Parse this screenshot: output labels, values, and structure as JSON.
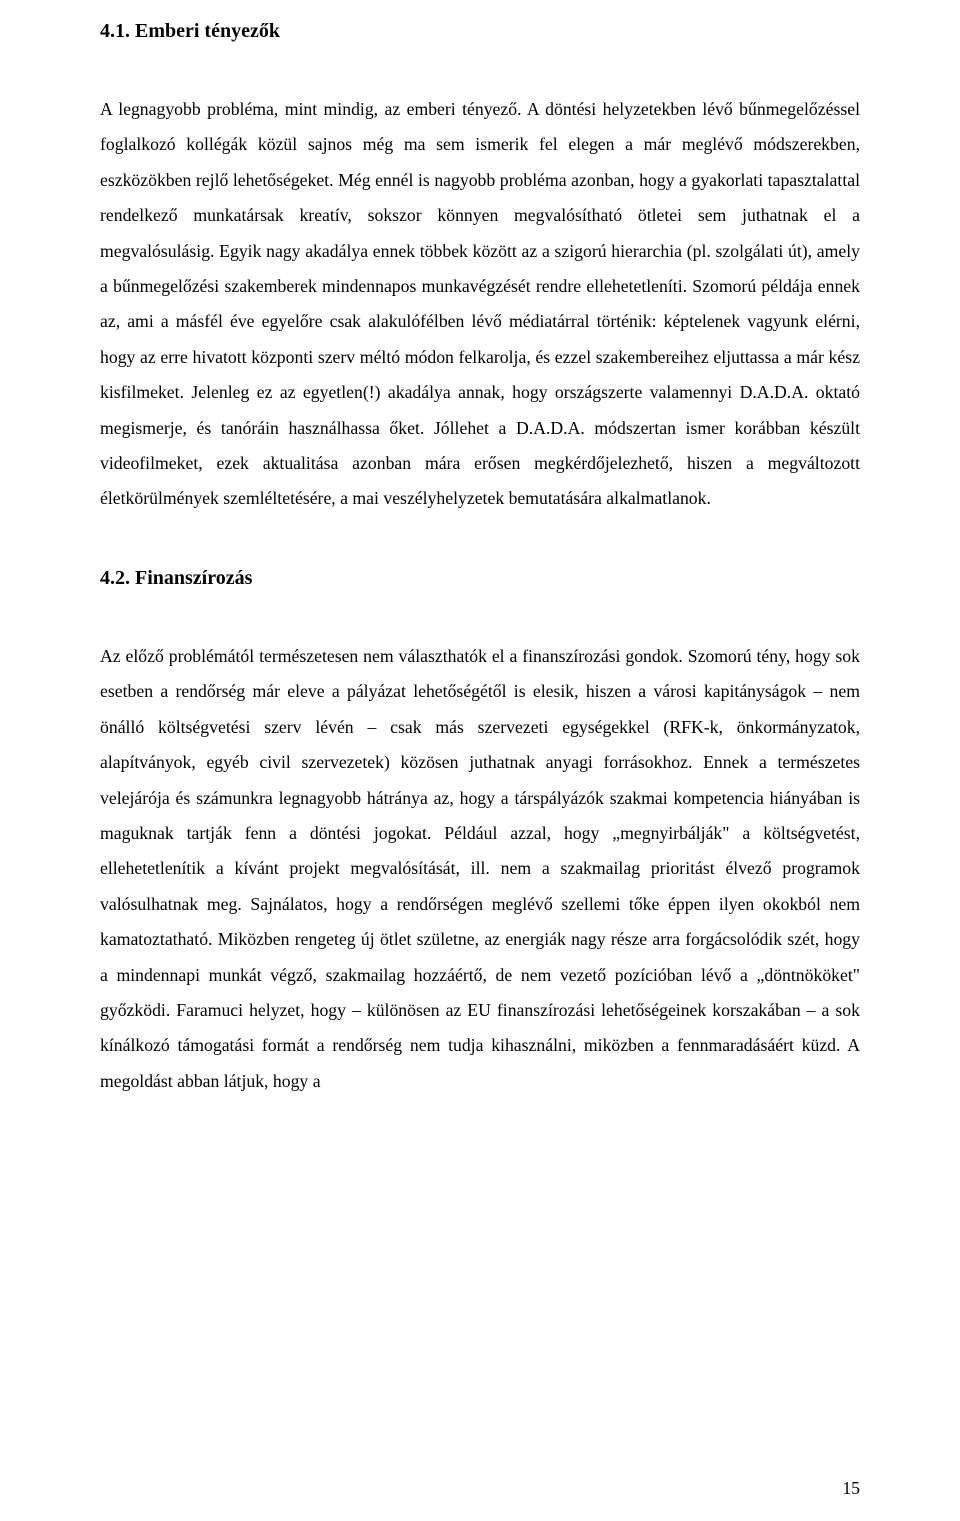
{
  "section1": {
    "heading": "4.1. Emberi tényezők",
    "body": "A legnagyobb probléma, mint mindig, az emberi tényező. A döntési helyzetekben lévő bűnmegelőzéssel foglalkozó kollégák közül sajnos még ma sem ismerik fel elegen a már meglévő módszerekben, eszközökben rejlő lehetőségeket. Még ennél is nagyobb probléma azonban, hogy a gyakorlati tapasztalattal rendelkező munkatársak kreatív, sokszor könnyen megvalósítható ötletei sem juthatnak el a megvalósulásig. Egyik nagy akadálya ennek többek között az a szigorú hierarchia (pl. szolgálati út), amely a bűnmegelőzési szakemberek mindennapos munkavégzését rendre ellehetetleníti. Szomorú példája ennek az, ami a másfél éve egyelőre csak alakulófélben lévő médiatárral történik: képtelenek vagyunk elérni, hogy az erre hivatott központi szerv méltó módon felkarolja, és ezzel szakembereihez eljuttassa a már kész kisfilmeket. Jelenleg ez az egyetlen(!) akadálya annak, hogy országszerte valamennyi D.A.D.A. oktató megismerje, és tanóráin használhassa őket. Jóllehet a D.A.D.A. módszertan ismer korábban készült videofilmeket, ezek aktualitása azonban mára erősen megkérdőjelezhető, hiszen a megváltozott életkörülmények szemléltetésére, a mai veszélyhelyzetek bemutatására alkalmatlanok."
  },
  "section2": {
    "heading": "4.2. Finanszírozás",
    "body": "Az előző problémától természetesen nem választhatók el a finanszírozási gondok. Szomorú tény, hogy sok esetben a rendőrség már eleve a pályázat lehetőségétől is elesik, hiszen a városi kapitányságok – nem önálló költségvetési szerv lévén – csak más szervezeti egységekkel (RFK-k, önkormányzatok, alapítványok, egyéb civil szervezetek) közösen juthatnak anyagi forrásokhoz. Ennek a természetes velejárója és számunkra legnagyobb hátránya az, hogy a társpályázók szakmai kompetencia hiányában is maguknak tartják fenn a döntési jogokat. Például azzal, hogy „megnyirbálják\" a költségvetést, ellehetetlenítik a kívánt projekt megvalósítását, ill. nem a szakmailag prioritást élvező programok valósulhatnak meg. Sajnálatos, hogy a rendőrségen meglévő szellemi tőke éppen ilyen okokból nem kamatoztatható. Miközben rengeteg új ötlet születne, az energiák nagy része arra forgácsolódik szét, hogy a mindennapi munkát végző, szakmailag hozzáértő, de nem vezető pozícióban lévő a „döntnököket\" győzködi. Faramuci helyzet, hogy – különösen az EU finanszírozási lehetőségeinek korszakában – a sok kínálkozó támogatási formát a rendőrség nem tudja kihasználni, miközben a fennmaradásáért küzd. A megoldást abban látjuk, hogy a"
  },
  "pageNumber": "15"
}
